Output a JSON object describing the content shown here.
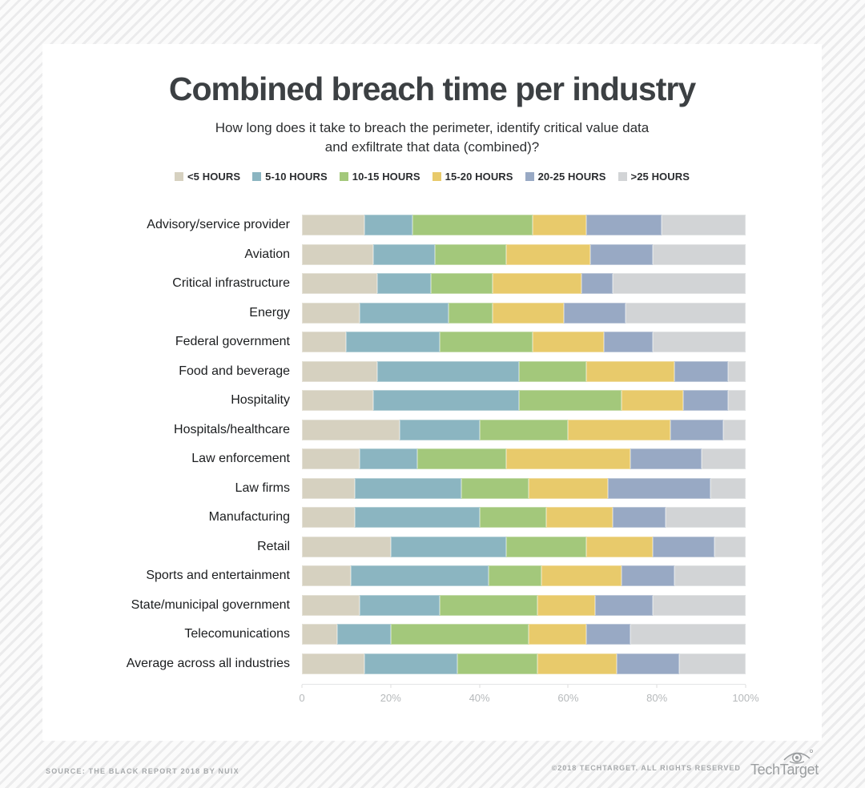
{
  "page": {
    "title": "Combined breach time per industry",
    "subtitle_line1": "How long does it take to breach the perimeter, identify critical value data",
    "subtitle_line2": "and exfiltrate that data (combined)?"
  },
  "legend": [
    {
      "label": "<5 HOURS",
      "color": "#d6d1c0"
    },
    {
      "label": "5-10 HOURS",
      "color": "#8bb5c1"
    },
    {
      "label": "10-15 HOURS",
      "color": "#a3c87b"
    },
    {
      "label": "15-20 HOURS",
      "color": "#e8ca6b"
    },
    {
      "label": "20-25 HOURS",
      "color": "#98a9c4"
    },
    {
      "label": ">25 HOURS",
      "color": "#d2d4d6"
    }
  ],
  "chart_data": {
    "type": "bar",
    "stacked": true,
    "orientation": "horizontal",
    "unit": "percent",
    "xlim": [
      0,
      100
    ],
    "x_ticks": [
      "0",
      "20%",
      "40%",
      "60%",
      "80%",
      "100%"
    ],
    "grid": false,
    "legend_position": "top",
    "series_names": [
      "<5 HOURS",
      "5-10 HOURS",
      "10-15 HOURS",
      "15-20 HOURS",
      "20-25 HOURS",
      ">25 HOURS"
    ],
    "series_colors": [
      "#d6d1c0",
      "#8bb5c1",
      "#a3c87b",
      "#e8ca6b",
      "#98a9c4",
      "#d2d4d6"
    ],
    "categories": [
      "Advisory/service provider",
      "Aviation",
      "Critical infrastructure",
      "Energy",
      "Federal government",
      "Food and beverage",
      "Hospitality",
      "Hospitals/healthcare",
      "Law enforcement",
      "Law firms",
      "Manufacturing",
      "Retail",
      "Sports and entertainment",
      "State/municipal government",
      "Telecomunications",
      "Average across all industries"
    ],
    "rows": [
      [
        14,
        11,
        27,
        12,
        17,
        19
      ],
      [
        16,
        14,
        16,
        19,
        14,
        21
      ],
      [
        17,
        12,
        14,
        20,
        7,
        30
      ],
      [
        13,
        20,
        10,
        16,
        14,
        27
      ],
      [
        10,
        21,
        21,
        16,
        11,
        21
      ],
      [
        17,
        32,
        15,
        20,
        12,
        4
      ],
      [
        16,
        33,
        23,
        14,
        10,
        4
      ],
      [
        22,
        18,
        20,
        23,
        12,
        5
      ],
      [
        13,
        13,
        20,
        28,
        16,
        10
      ],
      [
        12,
        24,
        15,
        18,
        23,
        8
      ],
      [
        12,
        28,
        15,
        15,
        12,
        18
      ],
      [
        20,
        26,
        18,
        15,
        14,
        7
      ],
      [
        11,
        31,
        12,
        18,
        12,
        16
      ],
      [
        13,
        18,
        22,
        13,
        13,
        21
      ],
      [
        8,
        12,
        31,
        13,
        10,
        26
      ],
      [
        14,
        21,
        18,
        18,
        14,
        15
      ]
    ]
  },
  "footer": {
    "source": "SOURCE: THE BLACK REPORT 2018 BY NUIX",
    "copyright": "©2018 TECHTARGET. ALL RIGHTS RESERVED",
    "logo_text": "TechTarget"
  }
}
